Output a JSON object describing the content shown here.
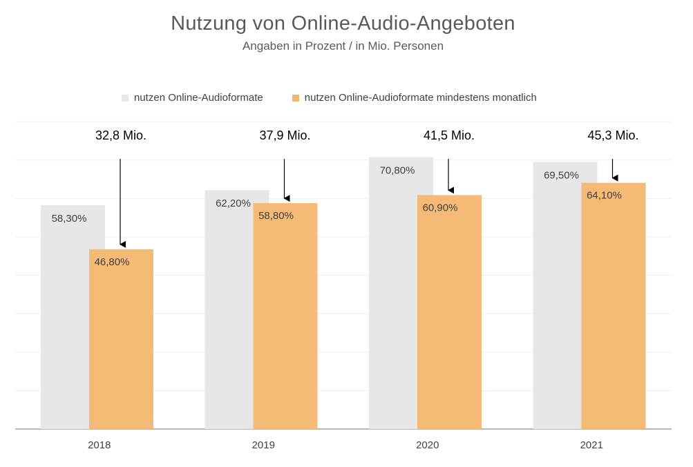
{
  "title": "Nutzung von Online-Audio-Angeboten",
  "subtitle": "Angaben in Prozent / in Mio. Personen",
  "colors": {
    "series1": "#e7e7e7",
    "series2": "#f4b66f",
    "text": "#404040",
    "title": "#595959"
  },
  "chart_data": {
    "type": "bar",
    "title": "Nutzung von Online-Audio-Angeboten",
    "subtitle": "Angaben in Prozent / in Mio. Personen",
    "categories": [
      "2018",
      "2019",
      "2020",
      "2021"
    ],
    "series": [
      {
        "name": "nutzen Online-Audioformate",
        "values": [
          58.3,
          62.2,
          70.8,
          69.5
        ],
        "labels": [
          "58,30%",
          "62,20%",
          "70,80%",
          "69,50%"
        ],
        "color": "#e7e7e7"
      },
      {
        "name": "nutzen Online-Audioformate mindestens monatlich",
        "values": [
          46.8,
          58.8,
          60.9,
          64.1
        ],
        "labels": [
          "46,80%",
          "58,80%",
          "60,90%",
          "64,10%"
        ],
        "color": "#f4b66f"
      }
    ],
    "annotations": [
      "32,8 Mio.",
      "37,9 Mio.",
      "41,5 Mio.",
      "45,3 Mio."
    ],
    "ylim": [
      0,
      80
    ],
    "grid": true,
    "legend": "top"
  }
}
